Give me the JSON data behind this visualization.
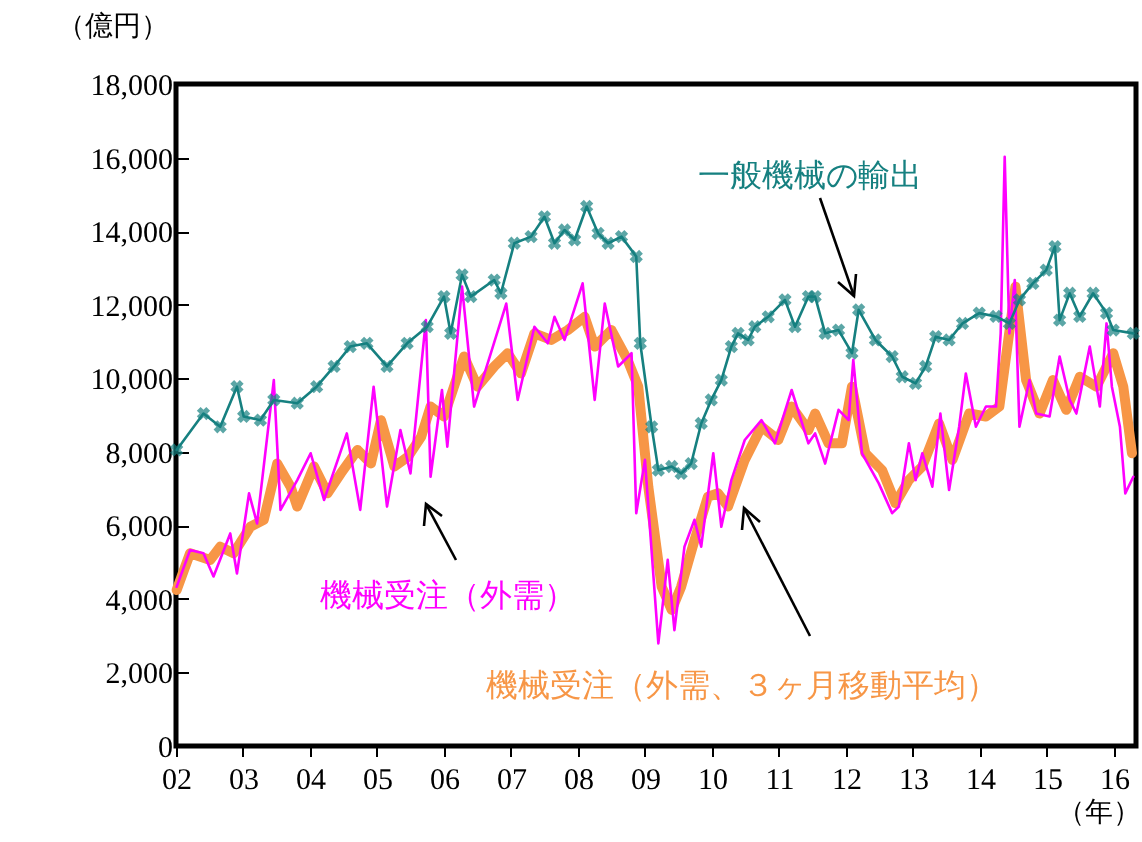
{
  "chart_data": {
    "type": "line",
    "xlabel": "（年）",
    "ylabel": "（億円）",
    "legend": false,
    "grid": false,
    "xlim": [
      2002,
      2016.33
    ],
    "xticks": [
      {
        "value": 2002,
        "label": "02"
      },
      {
        "value": 2003,
        "label": "03"
      },
      {
        "value": 2004,
        "label": "04"
      },
      {
        "value": 2005,
        "label": "05"
      },
      {
        "value": 2006,
        "label": "06"
      },
      {
        "value": 2007,
        "label": "07"
      },
      {
        "value": 2008,
        "label": "08"
      },
      {
        "value": 2009,
        "label": "09"
      },
      {
        "value": 2010,
        "label": "10"
      },
      {
        "value": 2011,
        "label": "11"
      },
      {
        "value": 2012,
        "label": "12"
      },
      {
        "value": 2013,
        "label": "13"
      },
      {
        "value": 2014,
        "label": "14"
      },
      {
        "value": 2015,
        "label": "15"
      },
      {
        "value": 2016,
        "label": "16"
      }
    ],
    "ylim": [
      0,
      18000
    ],
    "yticks": [
      0,
      {
        "value": 2000,
        "label": "2,000"
      },
      {
        "value": 4000,
        "label": "4,000"
      },
      {
        "value": 6000,
        "label": "6,000"
      },
      {
        "value": 8000,
        "label": "8,000"
      },
      {
        "value": 10000,
        "label": "10,000"
      },
      {
        "value": 12000,
        "label": "12,000"
      },
      {
        "value": 14000,
        "label": "14,000"
      },
      {
        "value": 16000,
        "label": "16,000"
      },
      {
        "value": 18000,
        "label": "18,000"
      }
    ],
    "series": [
      {
        "name": "一般機械の輸出",
        "color": "#168080",
        "marker": "cross",
        "x": [
          2002.01,
          2002.41,
          2002.66,
          2002.91,
          2003.01,
          2003.26,
          2003.46,
          2003.81,
          2004.1,
          2004.36,
          2004.6,
          2004.85,
          2005.15,
          2005.45,
          2005.75,
          2006.0,
          2006.1,
          2006.27,
          2006.4,
          2006.75,
          2006.85,
          2007.05,
          2007.3,
          2007.5,
          2007.65,
          2007.8,
          2007.95,
          2008.13,
          2008.3,
          2008.45,
          2008.65,
          2008.87,
          2008.93,
          2009.1,
          2009.2,
          2009.4,
          2009.54,
          2009.69,
          2009.84,
          2009.99,
          2010.14,
          2010.29,
          2010.39,
          2010.54,
          2010.64,
          2010.84,
          2011.09,
          2011.24,
          2011.44,
          2011.54,
          2011.69,
          2011.89,
          2012.09,
          2012.19,
          2012.44,
          2012.69,
          2012.84,
          2013.04,
          2013.19,
          2013.34,
          2013.54,
          2013.74,
          2013.99,
          2014.24,
          2014.44,
          2014.59,
          2014.79,
          2014.99,
          2015.12,
          2015.19,
          2015.34,
          2015.49,
          2015.69,
          2015.89,
          2015.99,
          2016.29
        ],
        "values": [
          8050,
          9040,
          8680,
          9770,
          8960,
          8860,
          9410,
          9320,
          9770,
          10320,
          10860,
          10950,
          10320,
          10950,
          11400,
          12220,
          11220,
          12810,
          12220,
          12670,
          12310,
          13670,
          13850,
          14390,
          13670,
          14030,
          13760,
          14670,
          13940,
          13670,
          13850,
          13310,
          10950,
          8680,
          7500,
          7600,
          7410,
          7680,
          8770,
          9410,
          9950,
          10860,
          11220,
          11040,
          11400,
          11670,
          12130,
          11400,
          12220,
          12220,
          11220,
          11310,
          10680,
          11860,
          11040,
          10590,
          10040,
          9860,
          10320,
          11130,
          11040,
          11490,
          11770,
          11680,
          11490,
          12130,
          12580,
          12940,
          13580,
          11580,
          12310,
          11680,
          12310,
          11770,
          11310,
          11220
        ]
      },
      {
        "name": "機械受注（外需）",
        "color": "#ff00ff",
        "x": [
          2002.01,
          2002.21,
          2002.41,
          2002.56,
          2002.81,
          2002.91,
          2003.09,
          2003.21,
          2003.46,
          2003.56,
          2003.81,
          2004.01,
          2004.21,
          2004.55,
          2004.75,
          2004.95,
          2005.15,
          2005.35,
          2005.5,
          2005.73,
          2005.8,
          2005.97,
          2006.05,
          2006.27,
          2006.45,
          2006.7,
          2006.93,
          2007.1,
          2007.35,
          2007.55,
          2007.65,
          2007.8,
          2008.07,
          2008.25,
          2008.4,
          2008.6,
          2008.8,
          2008.87,
          2009.0,
          2009.2,
          2009.34,
          2009.44,
          2009.59,
          2009.74,
          2009.84,
          2010.02,
          2010.14,
          2010.29,
          2010.49,
          2010.74,
          2010.94,
          2011.19,
          2011.44,
          2011.54,
          2011.69,
          2011.89,
          2012.04,
          2012.11,
          2012.24,
          2012.49,
          2012.69,
          2012.79,
          2012.94,
          2013.04,
          2013.14,
          2013.29,
          2013.41,
          2013.54,
          2013.69,
          2013.79,
          2013.94,
          2014.09,
          2014.24,
          2014.31,
          2014.37,
          2014.44,
          2014.52,
          2014.59,
          2014.74,
          2014.84,
          2015.04,
          2015.19,
          2015.34,
          2015.44,
          2015.64,
          2015.79,
          2015.89,
          2015.97,
          2016.09,
          2016.17,
          2016.29
        ],
        "values": [
          4330,
          5330,
          5240,
          4610,
          5780,
          4690,
          6870,
          6050,
          9950,
          6420,
          7230,
          7960,
          6690,
          8500,
          6420,
          9770,
          6510,
          8590,
          7410,
          11580,
          7320,
          9680,
          8140,
          12490,
          9230,
          10680,
          12030,
          9410,
          11400,
          10950,
          11670,
          11040,
          12580,
          9410,
          12030,
          10320,
          10680,
          6330,
          7780,
          2790,
          5060,
          3150,
          5420,
          6150,
          5420,
          7960,
          5960,
          7230,
          8320,
          8860,
          8230,
          9680,
          8230,
          8500,
          7680,
          9140,
          8860,
          10500,
          7960,
          7140,
          6330,
          6510,
          8230,
          7230,
          7960,
          7050,
          9040,
          6960,
          8680,
          10130,
          8680,
          9230,
          9230,
          11220,
          16020,
          11220,
          12670,
          8680,
          9950,
          9040,
          8960,
          10590,
          9410,
          9040,
          10860,
          9230,
          11490,
          9770,
          8680,
          6870,
          7320
        ]
      },
      {
        "name": "機械受注（外需、３ヶ月移動平均）",
        "color": "#f79646",
        "x": [
          2002.01,
          2002.21,
          2002.51,
          2002.66,
          2002.86,
          2003.11,
          2003.31,
          2003.51,
          2003.71,
          2003.81,
          2004.06,
          2004.26,
          2004.46,
          2004.71,
          2004.91,
          2005.06,
          2005.26,
          2005.46,
          2005.66,
          2005.8,
          2006.0,
          2006.3,
          2006.5,
          2006.75,
          2006.95,
          2007.15,
          2007.35,
          2007.6,
          2007.85,
          2008.1,
          2008.25,
          2008.5,
          2008.74,
          2008.9,
          2009.05,
          2009.25,
          2009.4,
          2009.54,
          2009.74,
          2009.94,
          2010.09,
          2010.24,
          2010.49,
          2010.74,
          2010.99,
          2011.19,
          2011.44,
          2011.54,
          2011.74,
          2011.94,
          2012.09,
          2012.29,
          2012.54,
          2012.74,
          2012.94,
          2013.14,
          2013.39,
          2013.59,
          2013.84,
          2014.09,
          2014.29,
          2014.53,
          2014.69,
          2014.89,
          2015.09,
          2015.29,
          2015.49,
          2015.74,
          2015.99,
          2016.14,
          2016.27
        ],
        "values": [
          4240,
          5240,
          5060,
          5420,
          5240,
          5960,
          6150,
          7680,
          7050,
          6510,
          7600,
          6870,
          7410,
          8050,
          7680,
          8860,
          7600,
          7860,
          8410,
          9230,
          8960,
          10590,
          9770,
          10320,
          10680,
          10130,
          11220,
          11040,
          11310,
          11670,
          10860,
          11310,
          10500,
          9770,
          7050,
          4330,
          3700,
          4330,
          5600,
          6780,
          6870,
          6510,
          7780,
          8680,
          8320,
          9230,
          8590,
          9040,
          8230,
          8230,
          9770,
          7960,
          7500,
          6600,
          7230,
          7600,
          8770,
          7780,
          9040,
          8960,
          9230,
          12490,
          9950,
          9040,
          9950,
          9140,
          10040,
          9770,
          10680,
          9770,
          7960
        ]
      }
    ]
  }
}
